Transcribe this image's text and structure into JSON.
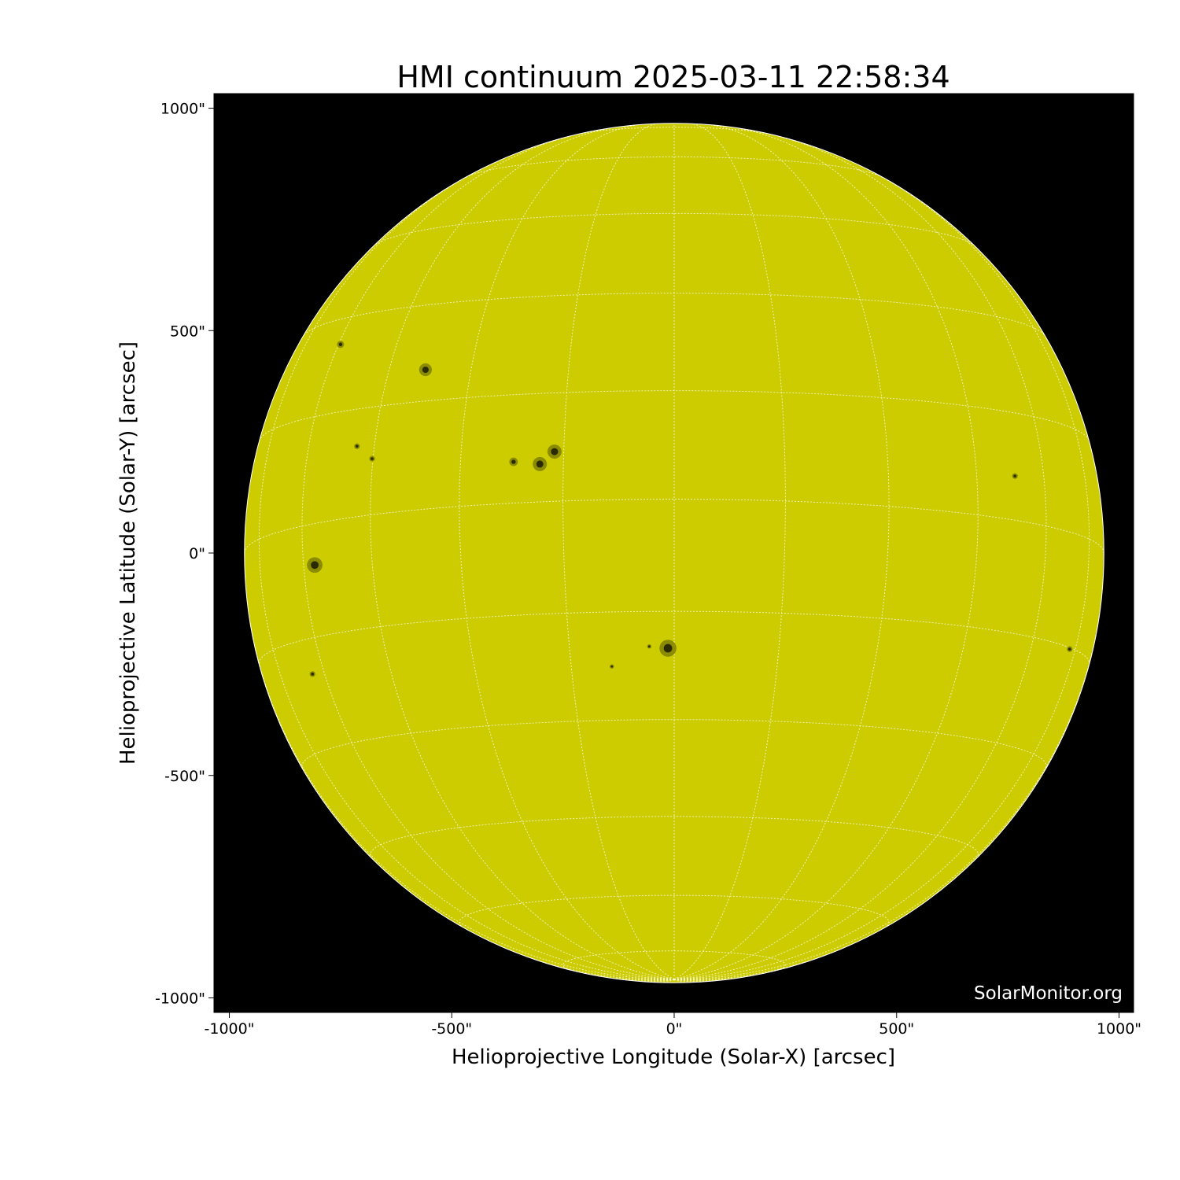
{
  "chart_data": {
    "type": "image",
    "title": "HMI continuum 2025-03-11 22:58:34",
    "xlabel": "Helioprojective Longitude (Solar-X) [arcsec]",
    "ylabel": "Helioprojective Latitude (Solar-Y) [arcsec]",
    "xlim": [
      -1035,
      1033
    ],
    "ylim": [
      -1035,
      1032
    ],
    "x_ticks": [
      {
        "value": -1000,
        "label": "-1000\""
      },
      {
        "value": -500,
        "label": "-500\""
      },
      {
        "value": 0,
        "label": "0\""
      },
      {
        "value": 500,
        "label": "500\""
      },
      {
        "value": 1000,
        "label": "1000\""
      }
    ],
    "y_ticks": [
      {
        "value": 1000,
        "label": "1000\""
      },
      {
        "value": 500,
        "label": "500\""
      },
      {
        "value": 0,
        "label": "0\""
      },
      {
        "value": -500,
        "label": "-500\""
      },
      {
        "value": -1000,
        "label": "-1000\""
      }
    ],
    "solar_radius_arcsec": 966,
    "grid": "heliographic, 15° spacing, dotted white",
    "colors": {
      "disk": "#cccc00",
      "background": "#000000",
      "grid": "#ffffff",
      "spots": "#2a2a00"
    },
    "sunspots": [
      {
        "x": -559,
        "y": 412,
        "size": 9
      },
      {
        "x": -750,
        "y": 469,
        "size": 5
      },
      {
        "x": -302,
        "y": 200,
        "size": 10
      },
      {
        "x": -269,
        "y": 228,
        "size": 10
      },
      {
        "x": -361,
        "y": 205,
        "size": 6
      },
      {
        "x": -808,
        "y": -27,
        "size": 11
      },
      {
        "x": -14,
        "y": -214,
        "size": 12
      },
      {
        "x": -813,
        "y": -272,
        "size": 4
      },
      {
        "x": 766,
        "y": 173,
        "size": 4
      },
      {
        "x": 889,
        "y": -216,
        "size": 4
      },
      {
        "x": -679,
        "y": 212,
        "size": 4
      },
      {
        "x": -713,
        "y": 240,
        "size": 4
      },
      {
        "x": -56,
        "y": -210,
        "size": 3
      },
      {
        "x": -140,
        "y": -255,
        "size": 3
      }
    ],
    "watermark": "SolarMonitor.org"
  }
}
